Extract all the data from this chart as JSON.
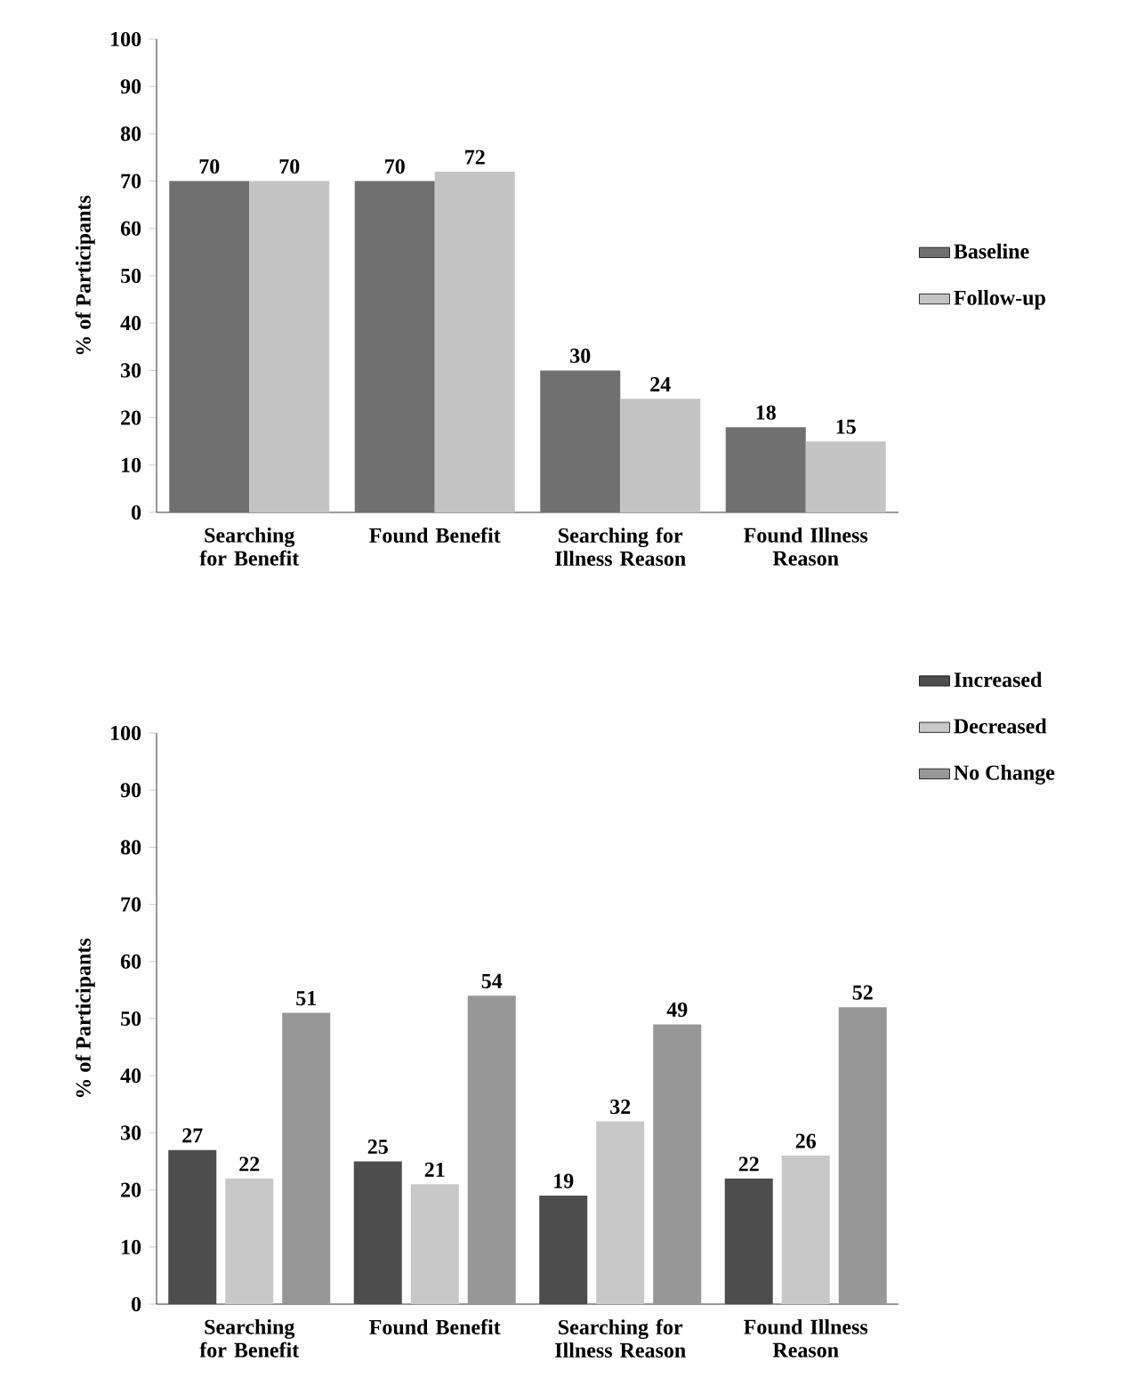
{
  "chart_data": [
    {
      "type": "bar",
      "ylabel": "% of Participants",
      "categories": [
        "Searching for Benefit",
        "Found Benefit",
        "Searching for Illness Reason",
        "Found Illness Reason"
      ],
      "series": [
        {
          "name": "Baseline",
          "color": "#707070",
          "values": [
            70,
            70,
            30,
            18
          ]
        },
        {
          "name": "Follow-up",
          "color": "#c4c4c4",
          "values": [
            70,
            72,
            24,
            15
          ]
        }
      ],
      "ylim": [
        0,
        100
      ],
      "yticks": [
        0,
        10,
        20,
        30,
        40,
        50,
        60,
        70,
        80,
        90,
        100
      ],
      "data_labels": true,
      "legend": "right",
      "grid": false
    },
    {
      "type": "bar",
      "ylabel": "% of Participants",
      "categories": [
        "Searching for Benefit",
        "Found Benefit",
        "Searching for Illness Reason",
        "Found Illness Reason"
      ],
      "series": [
        {
          "name": "Increased",
          "color": "#4d4d4d",
          "values": [
            27,
            25,
            19,
            22
          ]
        },
        {
          "name": "Decreased",
          "color": "#c8c8c8",
          "values": [
            22,
            21,
            32,
            26
          ]
        },
        {
          "name": "No Change",
          "color": "#979797",
          "values": [
            51,
            54,
            49,
            52
          ]
        }
      ],
      "ylim": [
        0,
        100
      ],
      "yticks": [
        0,
        10,
        20,
        30,
        40,
        50,
        60,
        70,
        80,
        90,
        100
      ],
      "data_labels": true,
      "legend": "top right",
      "grid": false
    }
  ]
}
